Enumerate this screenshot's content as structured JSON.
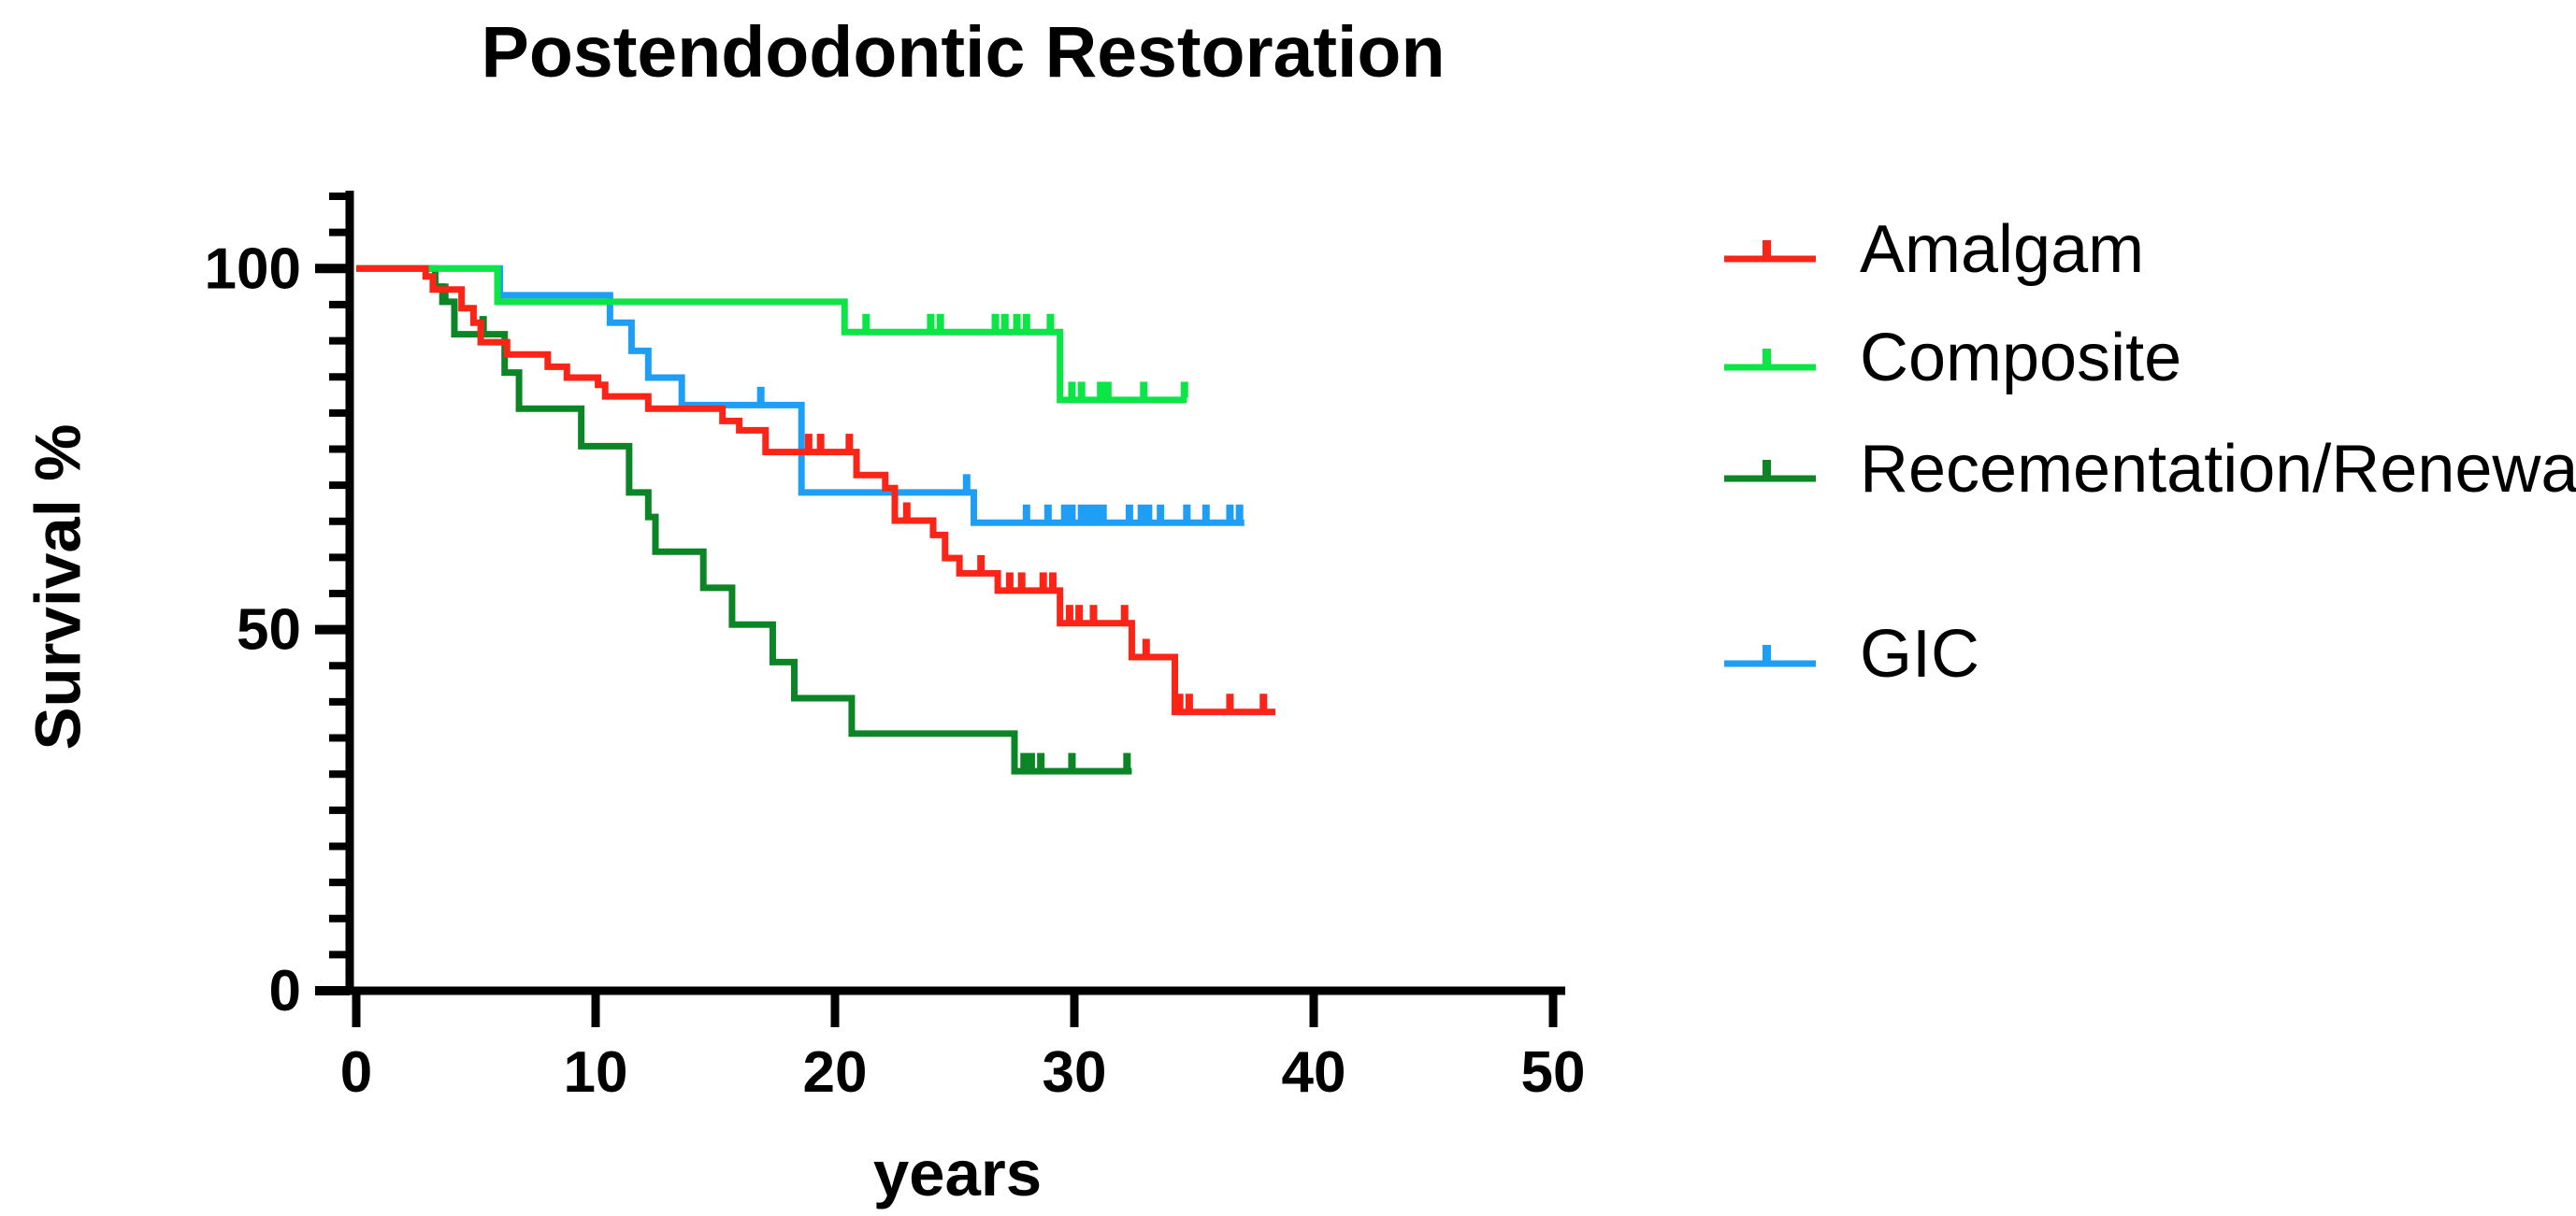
{
  "chart_data": {
    "type": "line",
    "subtype": "kaplan-meier-step-survival",
    "title": "Postendodontic Restoration",
    "xlabel": "years",
    "ylabel": "Survival %",
    "xlim": [
      0,
      50
    ],
    "ylim": [
      0,
      110
    ],
    "x_ticks": [
      0,
      10,
      20,
      30,
      40,
      50
    ],
    "y_ticks_major": [
      0,
      50,
      100
    ],
    "y_minor_tick_step": 5,
    "grid": false,
    "legend_position": "right",
    "background_color": "#ffffff",
    "axis_color": "#000000",
    "series": [
      {
        "name": "Amalgam",
        "color": "#fa2517",
        "end": 38.4,
        "points": [
          [
            0,
            100
          ],
          [
            2.9,
            98.9
          ],
          [
            3.2,
            97.1
          ],
          [
            4.4,
            94.5
          ],
          [
            4.9,
            92.5
          ],
          [
            5.2,
            89.8
          ],
          [
            6.3,
            88.1
          ],
          [
            8.0,
            86.4
          ],
          [
            8.8,
            84.9
          ],
          [
            10.1,
            83.9
          ],
          [
            10.4,
            82.3
          ],
          [
            12.2,
            80.6
          ],
          [
            15.3,
            78.9
          ],
          [
            16.0,
            77.6
          ],
          [
            17.1,
            74.6
          ],
          [
            20.9,
            71.4
          ],
          [
            22.1,
            69.6
          ],
          [
            22.5,
            65.1
          ],
          [
            24.1,
            63.1
          ],
          [
            24.6,
            59.9
          ],
          [
            25.2,
            57.8
          ],
          [
            26.8,
            55.4
          ],
          [
            29.4,
            50.9
          ],
          [
            32.4,
            46.2
          ],
          [
            34.2,
            38.6
          ]
        ],
        "censor_ticks": [
          18.9,
          19.4,
          20.6,
          23.0,
          26.1,
          27.3,
          27.8,
          28.7,
          29.1,
          29.8,
          30.2,
          30.8,
          32.1,
          33.0,
          34.4,
          34.8,
          36.5,
          37.9
        ]
      },
      {
        "name": "Composite",
        "color": "#0be546",
        "end": 34.7,
        "points": [
          [
            0,
            100
          ],
          [
            5.9,
            95.4
          ],
          [
            20.4,
            91.2
          ],
          [
            29.4,
            81.8
          ]
        ],
        "censor_ticks": [
          21.3,
          24.0,
          24.4,
          26.7,
          27.1,
          27.6,
          28.0,
          29.0,
          29.9,
          30.3,
          31.1,
          31.4,
          32.9,
          34.6
        ]
      },
      {
        "name": "Recementation/Renewal",
        "color": "#0b8525",
        "end": 32.4,
        "points": [
          [
            0,
            100
          ],
          [
            3.3,
            97.5
          ],
          [
            3.6,
            95.4
          ],
          [
            4.1,
            90.9
          ],
          [
            6.2,
            85.6
          ],
          [
            6.8,
            80.6
          ],
          [
            9.4,
            75.4
          ],
          [
            11.4,
            69.0
          ],
          [
            12.2,
            65.6
          ],
          [
            12.5,
            60.8
          ],
          [
            14.5,
            55.8
          ],
          [
            15.7,
            50.7
          ],
          [
            17.4,
            45.5
          ],
          [
            18.3,
            40.5
          ],
          [
            20.7,
            35.6
          ],
          [
            27.5,
            30.4
          ]
        ],
        "censor_ticks": [
          3.7,
          5.3,
          27.9,
          28.2,
          28.6,
          29.9,
          32.2
        ]
      },
      {
        "name": "GIC",
        "color": "#1f9ef5",
        "end": 37.1,
        "points": [
          [
            0,
            100
          ],
          [
            6.0,
            96.3
          ],
          [
            10.6,
            92.5
          ],
          [
            11.5,
            88.6
          ],
          [
            12.2,
            84.9
          ],
          [
            13.6,
            81.1
          ],
          [
            18.6,
            69.0
          ],
          [
            25.8,
            64.8
          ]
        ],
        "censor_ticks": [
          16.9,
          25.5,
          28.0,
          28.9,
          29.6,
          29.9,
          30.3,
          30.6,
          30.9,
          31.2,
          32.3,
          32.8,
          33.1,
          33.6,
          34.7,
          35.5,
          36.5,
          36.9
        ]
      }
    ]
  }
}
